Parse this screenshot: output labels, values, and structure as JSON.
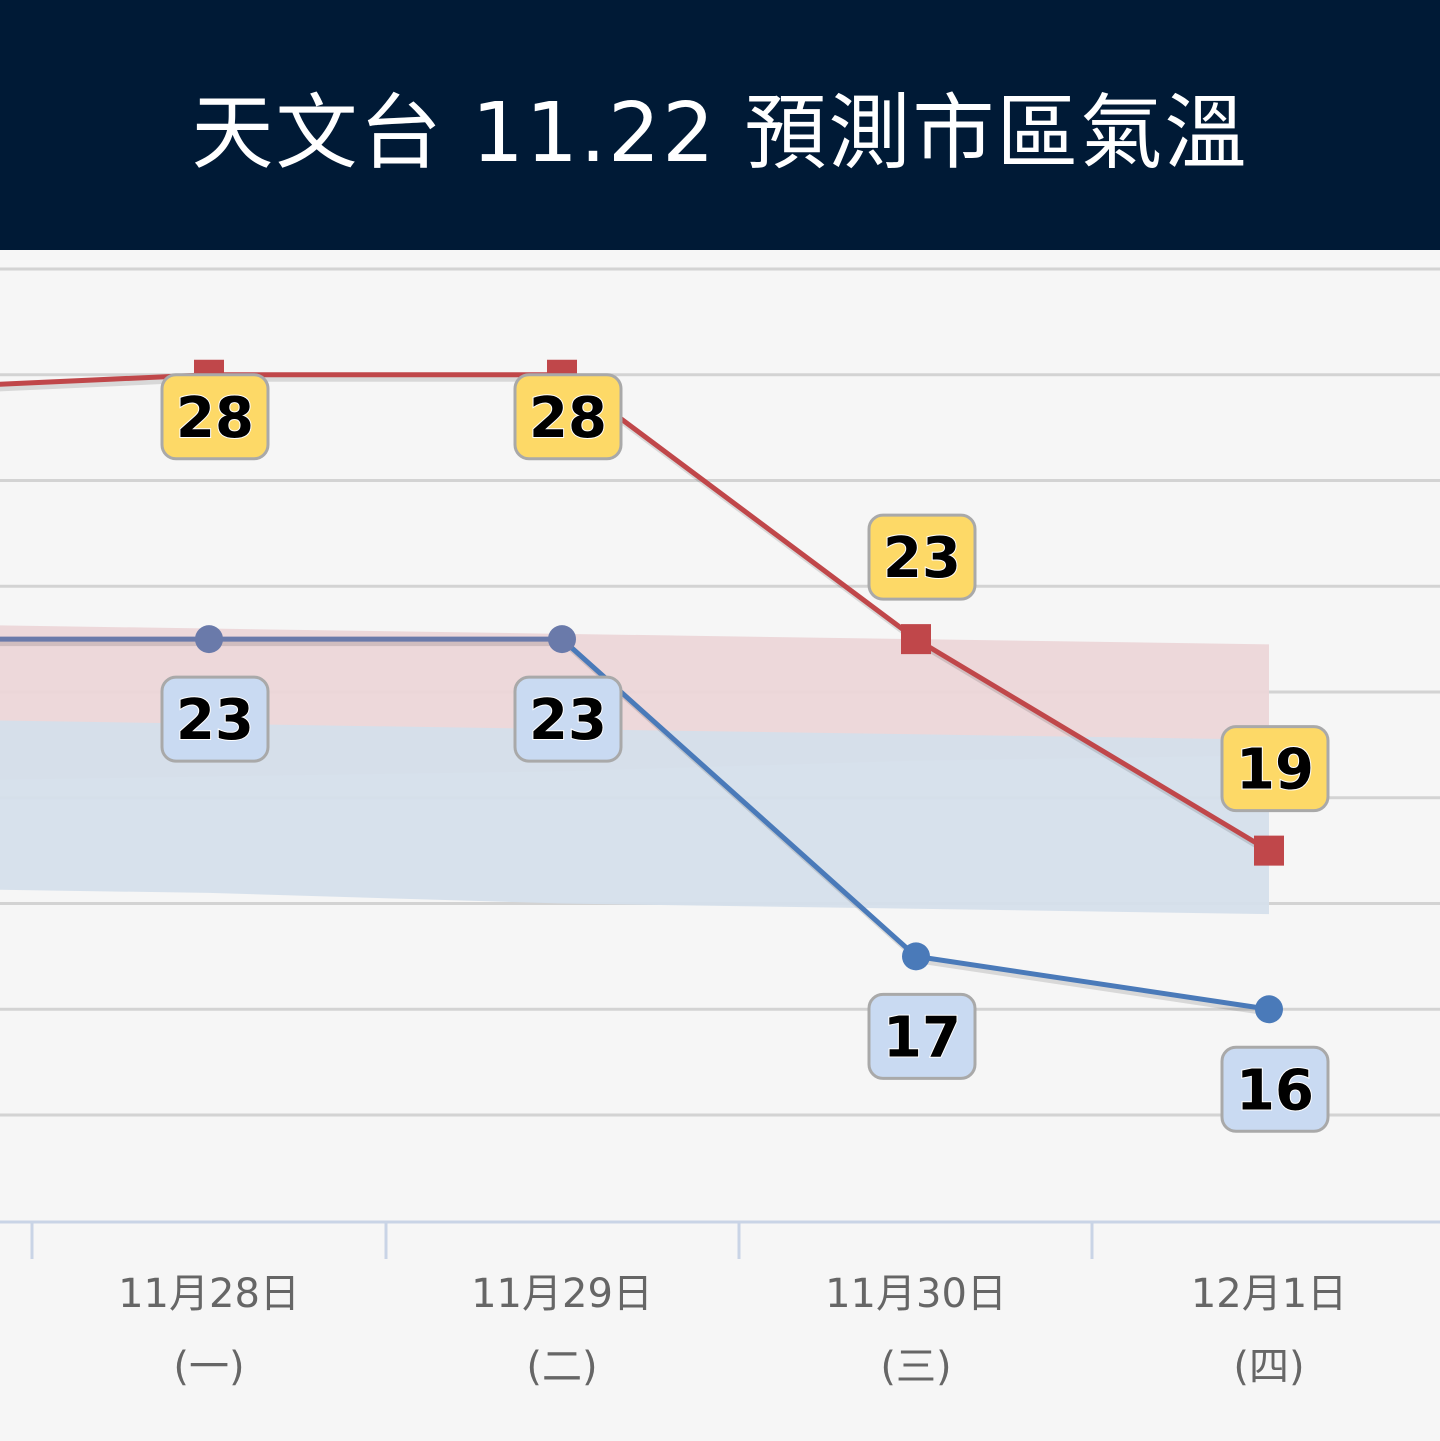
{
  "header": {
    "title": "天文台 11.22 預測市區氣溫"
  },
  "colors": {
    "header_bg": "#001a36",
    "max_line": "#c0474a",
    "min_line_left": "#6a7aaa",
    "min_line_right": "#4a7ab9",
    "max_band": "#ecd6d8",
    "min_band": "#d5dfeb",
    "max_label_bg": "#fdd967",
    "min_label_bg": "#c9daf2"
  },
  "chart_data": {
    "type": "line",
    "categories": [
      {
        "date": "",
        "weekday": ""
      },
      {
        "date": "11月28日",
        "weekday": "(一)"
      },
      {
        "date": "11月29日",
        "weekday": "(二)"
      },
      {
        "date": "11月30日",
        "weekday": "(三)"
      },
      {
        "date": "12月1日",
        "weekday": "(四)"
      }
    ],
    "series": [
      {
        "name": "",
        "key": "max",
        "marker": "square",
        "values": [
          27.7,
          28,
          28,
          23,
          19
        ],
        "labels": [
          "",
          "28",
          "28",
          "23",
          "19"
        ]
      },
      {
        "name": "",
        "key": "min",
        "marker": "circle",
        "values": [
          23,
          23,
          23,
          17,
          16
        ],
        "labels": [
          "",
          "23",
          "23",
          "17",
          "16"
        ]
      }
    ],
    "bands": [
      {
        "key": "max_range",
        "low": [
          20.3,
          20.4,
          20.5,
          20.7,
          20.8
        ],
        "high": [
          23.3,
          23.2,
          23.1,
          23.0,
          22.9
        ]
      },
      {
        "key": "min_range",
        "low": [
          18.3,
          18.2,
          18.0,
          17.9,
          17.8
        ],
        "high": [
          21.5,
          21.4,
          21.3,
          21.2,
          21.1
        ]
      }
    ],
    "y_range": [
      13,
      31
    ],
    "y_grid": [
      14,
      16,
      18,
      20,
      22,
      24,
      26,
      28,
      30
    ],
    "grid": true,
    "legend": "none"
  }
}
